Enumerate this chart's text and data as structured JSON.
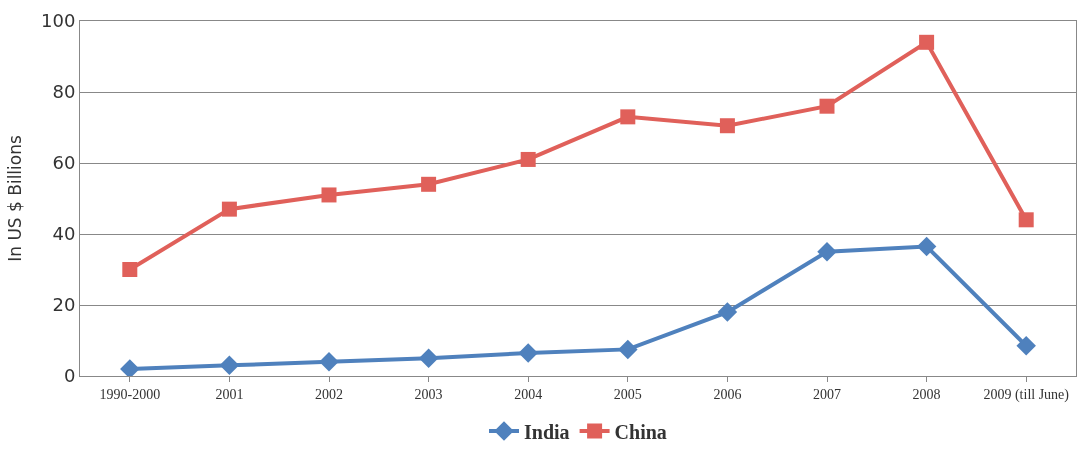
{
  "chart_data": {
    "type": "line",
    "ylabel": "In US $ Billions",
    "categories": [
      "1990-2000",
      "2001",
      "2002",
      "2003",
      "2004",
      "2005",
      "2006",
      "2007",
      "2008",
      "2009 (till June)"
    ],
    "series": [
      {
        "name": "India",
        "color": "#4f81bd",
        "marker": "diamond",
        "values": [
          2,
          3,
          4,
          5,
          6.5,
          7.5,
          18,
          35,
          36.5,
          8.5
        ]
      },
      {
        "name": "China",
        "color": "#e0605a",
        "marker": "square",
        "values": [
          30,
          47,
          51,
          54,
          61,
          73,
          70.5,
          76,
          94,
          44
        ]
      }
    ],
    "ylim": [
      0,
      100
    ],
    "yticks": [
      0,
      20,
      40,
      60,
      80,
      100
    ],
    "grid": "y",
    "legend": "bottom",
    "line_style": "solid"
  }
}
